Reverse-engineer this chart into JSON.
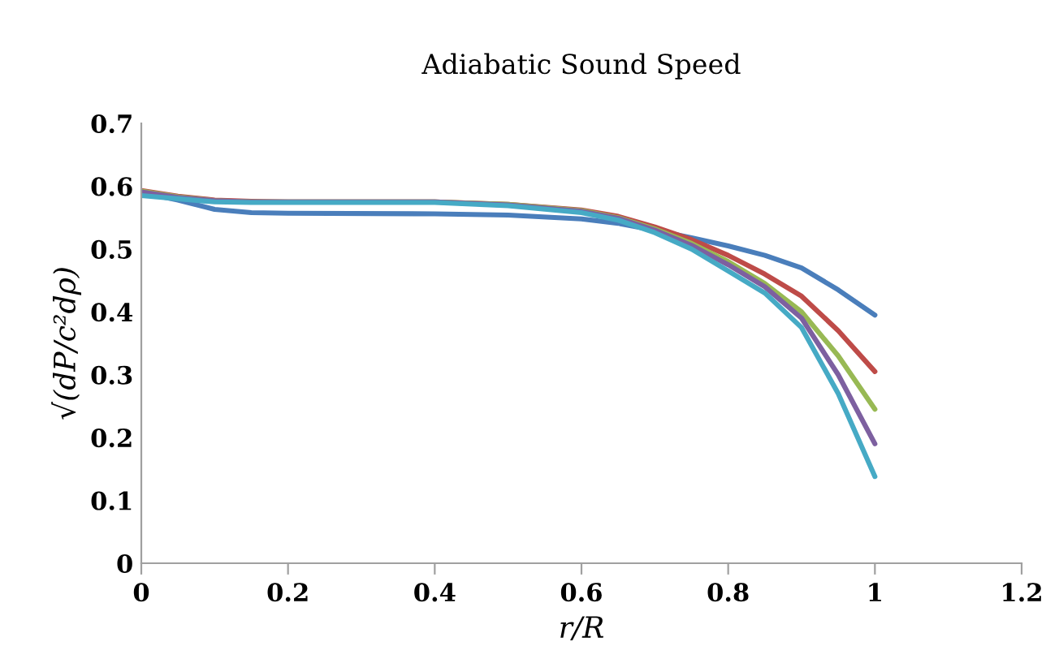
{
  "chart_data": {
    "type": "line",
    "title": "Adiabatic Sound Speed",
    "xlabel": "r/R",
    "ylabel": "√(dP/c²dρ)",
    "xlim": [
      0,
      1.2
    ],
    "xticks": [
      0,
      0.2,
      0.4,
      0.6,
      0.8,
      1,
      1.2
    ],
    "ylim": [
      0,
      0.7
    ],
    "yticks": [
      0,
      0.1,
      0.2,
      0.3,
      0.4,
      0.5,
      0.6,
      0.7
    ],
    "grid": false,
    "legend": false,
    "marker": "none",
    "line_style": "solid",
    "x": [
      0,
      0.05,
      0.1,
      0.15,
      0.2,
      0.4,
      0.5,
      0.6,
      0.65,
      0.7,
      0.75,
      0.8,
      0.85,
      0.9,
      0.95,
      1.0
    ],
    "series": [
      {
        "color": "#4a7ebb",
        "values": [
          0.59,
          0.578,
          0.563,
          0.558,
          0.557,
          0.556,
          0.554,
          0.548,
          0.541,
          0.53,
          0.518,
          0.505,
          0.49,
          0.47,
          0.435,
          0.395
        ]
      },
      {
        "color": "#be4b48",
        "values": [
          0.593,
          0.584,
          0.578,
          0.576,
          0.575,
          0.575,
          0.571,
          0.562,
          0.552,
          0.535,
          0.515,
          0.49,
          0.46,
          0.425,
          0.37,
          0.305
        ]
      },
      {
        "color": "#98b954",
        "values": [
          0.592,
          0.583,
          0.577,
          0.575,
          0.575,
          0.575,
          0.571,
          0.561,
          0.55,
          0.532,
          0.509,
          0.48,
          0.445,
          0.4,
          0.33,
          0.245
        ]
      },
      {
        "color": "#7d60a0",
        "values": [
          0.591,
          0.582,
          0.577,
          0.575,
          0.575,
          0.575,
          0.57,
          0.56,
          0.549,
          0.53,
          0.506,
          0.475,
          0.44,
          0.39,
          0.3,
          0.19
        ]
      },
      {
        "color": "#46aac5",
        "values": [
          0.585,
          0.58,
          0.575,
          0.574,
          0.574,
          0.574,
          0.569,
          0.558,
          0.546,
          0.526,
          0.5,
          0.465,
          0.43,
          0.375,
          0.27,
          0.138
        ]
      }
    ]
  }
}
